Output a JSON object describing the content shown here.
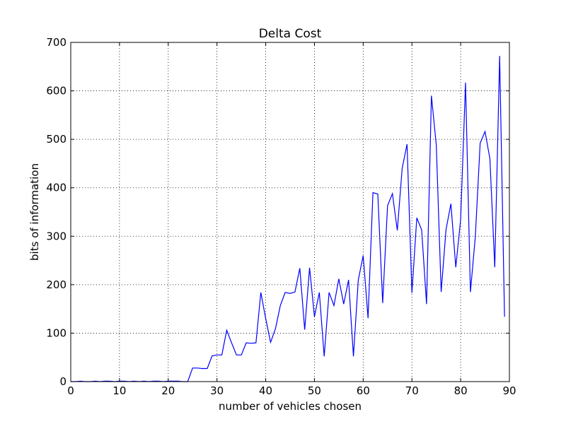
{
  "chart_data": {
    "type": "line",
    "title": "Delta Cost",
    "xlabel": "number of vehicles chosen",
    "ylabel": "bits of information",
    "xlim": [
      0,
      90
    ],
    "ylim": [
      0,
      700
    ],
    "xticks": [
      "0",
      "10",
      "20",
      "30",
      "40",
      "50",
      "60",
      "70",
      "80",
      "90"
    ],
    "yticks": [
      "0",
      "100",
      "200",
      "300",
      "400",
      "500",
      "600",
      "700"
    ],
    "grid": true,
    "grid_style": "dotted",
    "series": [
      {
        "color": "#0000ff",
        "x": [
          0,
          1,
          2,
          3,
          4,
          5,
          6,
          7,
          8,
          9,
          10,
          11,
          12,
          13,
          14,
          15,
          16,
          17,
          18,
          19,
          20,
          21,
          22,
          23,
          24,
          25,
          26,
          27,
          28,
          29,
          30,
          31,
          32,
          33,
          34,
          35,
          36,
          37,
          38,
          39,
          40,
          41,
          42,
          43,
          44,
          45,
          46,
          47,
          48,
          49,
          50,
          51,
          52,
          53,
          54,
          55,
          56,
          57,
          58,
          59,
          60,
          61,
          62,
          63,
          64,
          65,
          66,
          67,
          68,
          69,
          70,
          71,
          72,
          73,
          74,
          75,
          76,
          77,
          78,
          79,
          80,
          81,
          82,
          83,
          84,
          85,
          86,
          87,
          88,
          89
        ],
        "y": [
          0,
          0,
          1,
          0,
          0,
          1,
          0,
          1,
          1,
          0,
          1,
          1,
          0,
          1,
          0,
          1,
          0,
          1,
          1,
          0,
          1,
          1,
          1,
          0,
          0,
          28,
          28,
          27,
          27,
          53,
          55,
          55,
          106,
          80,
          55,
          55,
          80,
          79,
          80,
          184,
          130,
          81,
          109,
          157,
          184,
          182,
          185,
          234,
          107,
          235,
          134,
          184,
          52,
          184,
          157,
          212,
          160,
          210,
          52,
          210,
          260,
          131,
          390,
          387,
          162,
          363,
          388,
          312,
          440,
          490,
          183,
          338,
          313,
          160,
          590,
          488,
          185,
          314,
          367,
          236,
          335,
          617,
          185,
          298,
          492,
          516,
          460,
          236,
          672,
          134
        ]
      }
    ]
  }
}
